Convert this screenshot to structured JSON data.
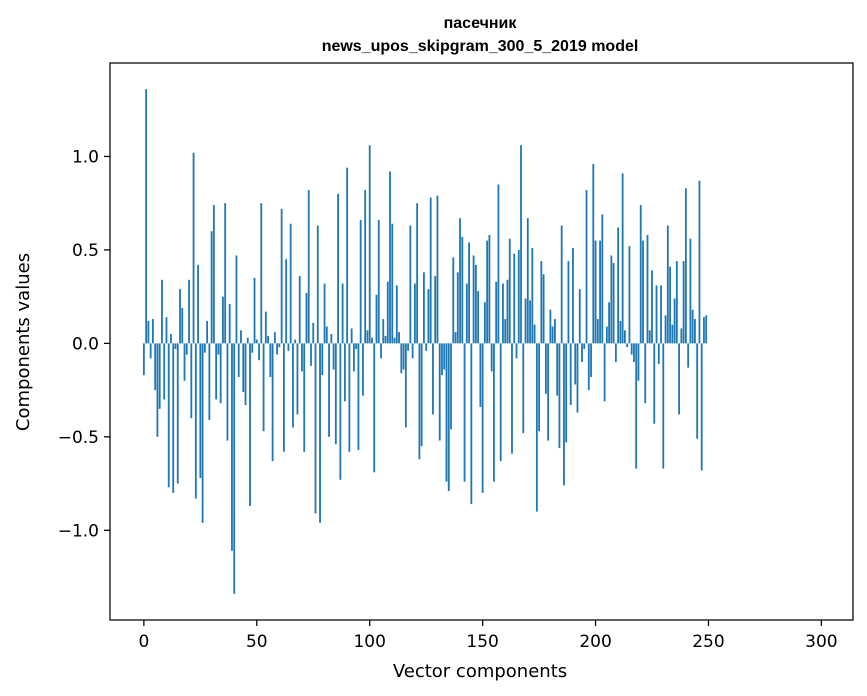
{
  "chart_data": {
    "type": "bar",
    "title_line1": "пасечник",
    "title_line2": "news_upos_skipgram_300_5_2019 model",
    "xlabel": "Vector components",
    "ylabel": "Components values",
    "xlim": [
      -15,
      314
    ],
    "ylim": [
      -1.48,
      1.5
    ],
    "x_ticks": [
      0,
      50,
      100,
      150,
      200,
      250,
      300
    ],
    "x_tick_labels": [
      "0",
      "50",
      "100",
      "150",
      "200",
      "250",
      "300"
    ],
    "y_ticks": [
      -1.0,
      -0.5,
      0.0,
      0.5,
      1.0
    ],
    "y_tick_labels": [
      "−1.0",
      "−0.5",
      "0.0",
      "0.5",
      "1.0"
    ],
    "bar_color": "#1f77b4",
    "values": [
      -0.17,
      1.36,
      0.12,
      -0.08,
      0.13,
      -0.25,
      -0.5,
      -0.35,
      0.34,
      -0.3,
      0.14,
      -0.77,
      0.05,
      -0.8,
      -0.03,
      -0.75,
      0.29,
      0.19,
      -0.2,
      -0.06,
      0.34,
      -0.4,
      1.02,
      -0.83,
      0.42,
      -0.72,
      -0.96,
      -0.05,
      0.12,
      -0.41,
      0.6,
      0.74,
      -0.3,
      -0.06,
      -0.32,
      0.25,
      0.75,
      -0.52,
      0.21,
      -1.11,
      -1.34,
      0.47,
      -0.18,
      0.07,
      -0.26,
      -0.33,
      0.03,
      -0.87,
      -0.05,
      0.35,
      0.02,
      -0.09,
      0.75,
      -0.47,
      0.17,
      0.04,
      -0.18,
      -0.63,
      0.06,
      -0.06,
      -0.02,
      0.72,
      -0.58,
      0.45,
      -0.04,
      0.64,
      -0.45,
      0.02,
      -0.38,
      0.36,
      -0.15,
      -0.58,
      0.27,
      0.82,
      -0.12,
      0.11,
      -0.91,
      0.63,
      -0.96,
      -0.17,
      0.32,
      0.09,
      -0.5,
      0.05,
      -0.14,
      -0.54,
      0.8,
      -0.73,
      0.32,
      -0.31,
      0.94,
      -0.58,
      0.08,
      -0.15,
      -0.03,
      -0.57,
      0.66,
      -0.28,
      0.82,
      0.07,
      1.06,
      0.03,
      -0.69,
      0.26,
      0.66,
      -0.08,
      0.13,
      0.04,
      0.33,
      0.92,
      0.64,
      0.03,
      0.31,
      0.06,
      -0.16,
      -0.14,
      -0.45,
      -0.04,
      0.63,
      -0.08,
      0.32,
      0.75,
      -0.62,
      -0.55,
      0.38,
      -0.04,
      0.29,
      0.78,
      -0.38,
      0.36,
      0.79,
      -0.52,
      -0.17,
      -0.14,
      -0.74,
      -0.79,
      -0.46,
      0.46,
      0.06,
      0.38,
      0.67,
      0.57,
      -0.74,
      0.32,
      0.54,
      -0.86,
      0.47,
      0.42,
      0.28,
      -0.34,
      -0.8,
      0.22,
      0.55,
      0.58,
      -0.15,
      -0.74,
      0.33,
      0.85,
      -0.63,
      0.32,
      0.13,
      0.34,
      0.56,
      -0.59,
      0.48,
      -0.08,
      0.5,
      1.06,
      -0.48,
      0.24,
      0.67,
      0.23,
      0.51,
      0.1,
      -0.9,
      -0.47,
      0.44,
      0.37,
      -0.27,
      -0.52,
      0.18,
      0.09,
      0.13,
      -0.28,
      -0.56,
      0.63,
      -0.76,
      -0.53,
      0.44,
      -0.33,
      0.51,
      -0.22,
      -0.37,
      0.29,
      -0.1,
      -0.03,
      0.82,
      -0.25,
      -0.18,
      0.96,
      0.55,
      0.13,
      0.55,
      0.69,
      -0.31,
      0.09,
      0.22,
      0.47,
      0.43,
      -0.1,
      0.62,
      0.12,
      0.91,
      0.07,
      -0.02,
      0.52,
      -0.06,
      -0.1,
      -0.67,
      -0.2,
      0.74,
      0.55,
      -0.32,
      0.58,
      0.07,
      0.39,
      -0.43,
      0.31,
      -0.11,
      0.31,
      -0.67,
      0.15,
      0.63,
      0.41,
      0.1,
      0.24,
      0.44,
      -0.38,
      0.08,
      0.44,
      0.83,
      -0.13,
      0.56,
      0.18,
      0.13,
      -0.51,
      0.87,
      -0.68,
      0.14,
      0.15
    ]
  }
}
